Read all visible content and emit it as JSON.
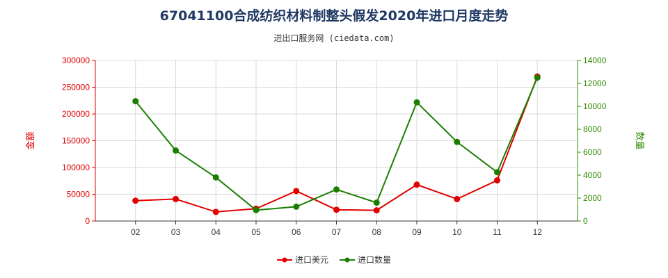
{
  "chart_data": {
    "type": "line",
    "title": "67041100合成纺织材料制整头假发2020年进口月度走势",
    "subtitle": "进出口服务网 (ciedata.com)",
    "categories": [
      "02",
      "03",
      "04",
      "05",
      "06",
      "07",
      "08",
      "09",
      "10",
      "11",
      "12"
    ],
    "y_left": {
      "label": "金额",
      "range": [
        0,
        300000
      ],
      "ticks": [
        "0",
        "50000",
        "100000",
        "150000",
        "200000",
        "250000",
        "300000"
      ],
      "tick_values": [
        0,
        50000,
        100000,
        150000,
        200000,
        250000,
        300000
      ],
      "color": "#e00000"
    },
    "y_right": {
      "label": "数量",
      "range": [
        0,
        14000
      ],
      "ticks": [
        "0",
        "2000",
        "4000",
        "6000",
        "8000",
        "10000",
        "12000",
        "14000"
      ],
      "tick_values": [
        0,
        2000,
        4000,
        6000,
        8000,
        10000,
        12000,
        14000
      ],
      "color": "#2e8b00"
    },
    "series": [
      {
        "name": "进口美元",
        "axis": "left",
        "color": "#e00000",
        "values": [
          38000,
          41000,
          17000,
          23000,
          56000,
          21000,
          20000,
          68000,
          41000,
          76000,
          270000
        ]
      },
      {
        "name": "进口数量",
        "axis": "right",
        "color": "#1a7f00",
        "values": [
          10450,
          6150,
          3800,
          950,
          1250,
          2750,
          1600,
          10350,
          6900,
          4250,
          12500
        ]
      }
    ],
    "grid": true,
    "legend_position": "bottom-center"
  }
}
